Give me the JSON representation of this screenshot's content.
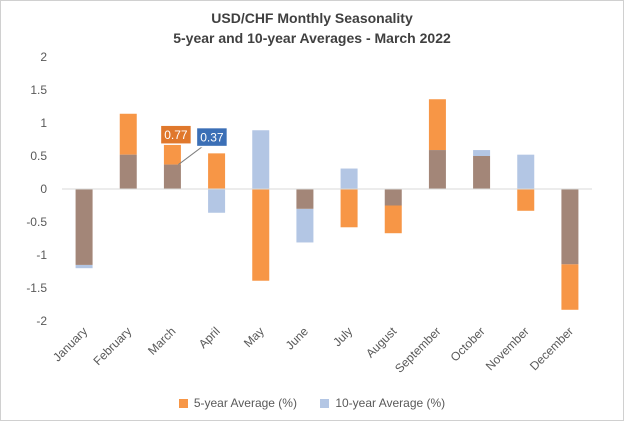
{
  "chart_data": {
    "type": "bar",
    "title": "USD/CHF Monthly Seasonality",
    "subtitle": "5-year and 10-year Averages - March 2022",
    "categories": [
      "January",
      "February",
      "March",
      "April",
      "May",
      "June",
      "July",
      "August",
      "September",
      "October",
      "November",
      "December"
    ],
    "series": [
      {
        "name": "5-year Average (%)",
        "color": "#F79646",
        "values": [
          -1.15,
          1.14,
          0.77,
          0.54,
          -1.39,
          -0.3,
          -0.58,
          -0.67,
          1.36,
          0.5,
          -0.33,
          -1.83
        ]
      },
      {
        "name": "10-year Average (%)",
        "color": "#B3C6E4",
        "values": [
          -1.2,
          0.52,
          0.37,
          -0.36,
          0.89,
          -0.81,
          0.31,
          -0.25,
          0.59,
          0.59,
          0.52,
          -1.14
        ]
      }
    ],
    "overlap_color": "#A38678",
    "ylim": [
      -2,
      2
    ],
    "yticks": [
      2,
      1.5,
      1,
      0.5,
      0,
      -0.5,
      -1,
      -1.5,
      -2
    ],
    "grid": false,
    "legend_position": "bottom",
    "annotations": [
      {
        "month": "March",
        "series": "5-year Average (%)",
        "text": "0.77",
        "color": "#E0782C"
      },
      {
        "month": "March",
        "series": "10-year Average (%)",
        "text": "0.37",
        "color": "#3B6FB6"
      }
    ]
  }
}
